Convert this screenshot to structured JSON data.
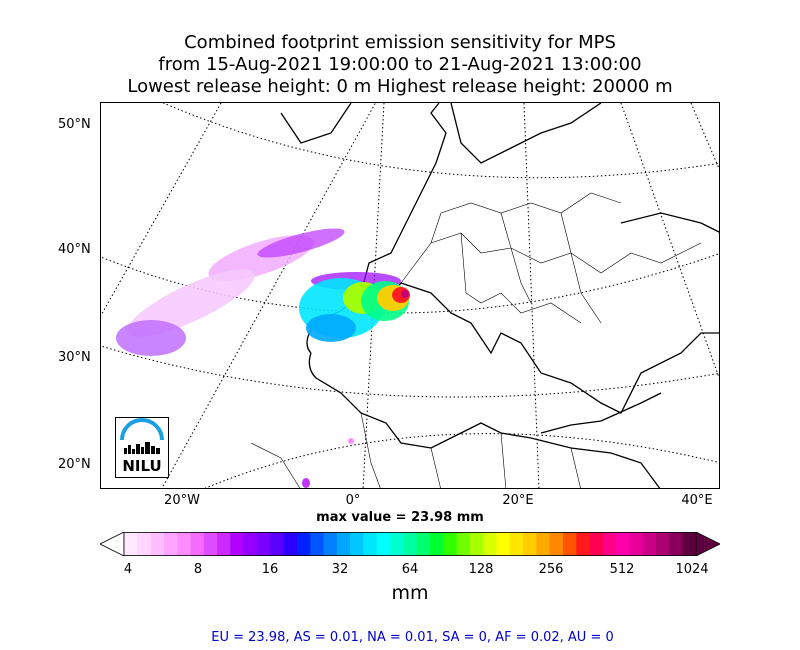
{
  "title": {
    "line1": "Combined footprint emission sensitivity for MPS",
    "line2": "from 15-Aug-2021 19:00:00 to 21-Aug-2021 13:00:00",
    "line3": "Lowest release height: 0 m      Highest release height: 20000 m"
  },
  "axes": {
    "lat_labels": [
      "50°N",
      "40°N",
      "30°N",
      "20°N"
    ],
    "lon_labels": [
      "20°W",
      "0°",
      "20°E",
      "40°E"
    ]
  },
  "max_value": "max value = 23.98 mm",
  "colorbar": {
    "labels": [
      "4",
      "8",
      "16",
      "32",
      "64",
      "128",
      "256",
      "512",
      "1024"
    ],
    "unit": "mm",
    "colors": [
      "#ffe9ff",
      "#ffd6ff",
      "#ffbfff",
      "#ffa6ff",
      "#ff8cff",
      "#f46cff",
      "#e04dff",
      "#cc2bff",
      "#b000ff",
      "#9400ff",
      "#7a00ff",
      "#5a00ff",
      "#2b00ff",
      "#0020ff",
      "#0055ff",
      "#007fff",
      "#00a6ff",
      "#00c8ff",
      "#00e5ff",
      "#00ffff",
      "#00ffd0",
      "#00ffa0",
      "#00ff6e",
      "#00ff30",
      "#30ff00",
      "#70ff00",
      "#a8ff00",
      "#d8ff00",
      "#ffff00",
      "#ffe600",
      "#ffcc00",
      "#ffaa00",
      "#ff8800",
      "#ff5500",
      "#ff1a1a",
      "#ff0055",
      "#ff0088",
      "#ff00aa",
      "#e6009a",
      "#cc0088",
      "#aa0070",
      "#880058",
      "#5e0040"
    ]
  },
  "stats": "EU = 23.98,  AS = 0.01,  NA = 0.01,  SA = 0,  AF = 0.02,  AU = 0",
  "logo": {
    "text": "NILU",
    "accent": "#1aa0e0"
  }
}
